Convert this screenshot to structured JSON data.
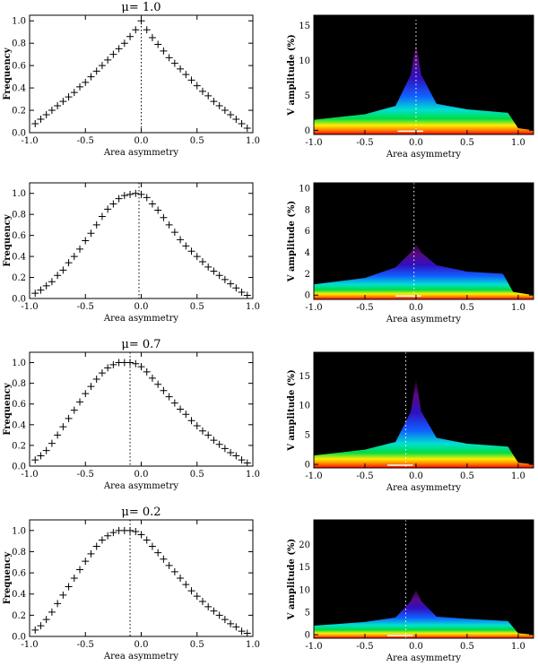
{
  "chart_data": [
    {
      "type": "scatter",
      "title": "μ= 1.0",
      "xlabel": "Area asymmetry",
      "ylabel": "Frequency",
      "xlim": [
        -1.0,
        1.0
      ],
      "ylim": [
        0.0,
        1.05
      ],
      "xticks": [
        "-1.0",
        "-0.5",
        "0.0",
        "0.5",
        "1.0"
      ],
      "yticks": [
        "0.0",
        "0.2",
        "0.4",
        "0.6",
        "0.8",
        "1.0"
      ],
      "peak_x": 0.0,
      "series": [
        {
          "x": [
            -0.95,
            -0.9,
            -0.85,
            -0.8,
            -0.75,
            -0.7,
            -0.65,
            -0.6,
            -0.55,
            -0.5,
            -0.45,
            -0.4,
            -0.35,
            -0.3,
            -0.25,
            -0.2,
            -0.15,
            -0.1,
            -0.05,
            0.0,
            0.05,
            0.1,
            0.15,
            0.2,
            0.25,
            0.3,
            0.35,
            0.4,
            0.45,
            0.5,
            0.55,
            0.6,
            0.65,
            0.7,
            0.75,
            0.8,
            0.85,
            0.9,
            0.95
          ],
          "y": [
            0.08,
            0.12,
            0.16,
            0.2,
            0.24,
            0.28,
            0.32,
            0.36,
            0.41,
            0.45,
            0.5,
            0.55,
            0.6,
            0.65,
            0.7,
            0.75,
            0.8,
            0.86,
            0.92,
            1.0,
            0.92,
            0.85,
            0.79,
            0.73,
            0.67,
            0.62,
            0.57,
            0.52,
            0.47,
            0.42,
            0.37,
            0.33,
            0.28,
            0.24,
            0.2,
            0.16,
            0.12,
            0.08,
            0.04
          ]
        }
      ]
    },
    {
      "type": "heatmap",
      "title": "",
      "xlabel": "Area asymmetry",
      "ylabel": "V amplitude (%)",
      "xlim": [
        -1.0,
        1.15
      ],
      "ylim": [
        -0.6,
        16.5
      ],
      "xticks": [
        "-1.0",
        "-0.5",
        "0.0",
        "0.5",
        "1.0"
      ],
      "yticks": [
        "0",
        "5",
        "10",
        "15"
      ],
      "peak_x": 0.0,
      "mode_envelope": {
        "x": [
          -1.0,
          -0.5,
          -0.2,
          -0.05,
          0.0,
          0.05,
          0.2,
          0.5,
          0.9,
          1.0,
          1.15
        ],
        "y": [
          1.5,
          2.3,
          3.5,
          8.0,
          12.5,
          8.0,
          3.8,
          3.0,
          2.5,
          0.3,
          0.0
        ]
      }
    },
    {
      "type": "scatter",
      "title": "",
      "xlabel": "Area asymmetry",
      "ylabel": "Frequency",
      "xlim": [
        -1.0,
        1.0
      ],
      "ylim": [
        0.0,
        1.1
      ],
      "xticks": [
        "-1.0",
        "-0.5",
        "0.0",
        "0.5",
        "1.0"
      ],
      "yticks": [
        "0.0",
        "0.2",
        "0.4",
        "0.6",
        "0.8",
        "1.0"
      ],
      "peak_x": -0.02,
      "series": [
        {
          "x": [
            -0.95,
            -0.9,
            -0.85,
            -0.8,
            -0.75,
            -0.7,
            -0.65,
            -0.6,
            -0.55,
            -0.5,
            -0.45,
            -0.4,
            -0.35,
            -0.3,
            -0.25,
            -0.2,
            -0.15,
            -0.1,
            -0.05,
            0.0,
            0.05,
            0.1,
            0.15,
            0.2,
            0.25,
            0.3,
            0.35,
            0.4,
            0.45,
            0.5,
            0.55,
            0.6,
            0.65,
            0.7,
            0.75,
            0.8,
            0.85,
            0.9,
            0.95
          ],
          "y": [
            0.05,
            0.08,
            0.12,
            0.16,
            0.22,
            0.27,
            0.34,
            0.4,
            0.47,
            0.55,
            0.62,
            0.7,
            0.78,
            0.85,
            0.9,
            0.95,
            0.98,
            0.99,
            1.0,
            0.99,
            0.96,
            0.9,
            0.84,
            0.77,
            0.7,
            0.63,
            0.56,
            0.5,
            0.45,
            0.4,
            0.35,
            0.3,
            0.26,
            0.22,
            0.18,
            0.14,
            0.1,
            0.06,
            0.03
          ]
        }
      ]
    },
    {
      "type": "heatmap",
      "title": "",
      "xlabel": "Area asymmetry",
      "ylabel": "V amplitude (%)",
      "xlim": [
        -1.0,
        1.15
      ],
      "ylim": [
        -0.4,
        10.5
      ],
      "xticks": [
        "-1.0",
        "-0.5",
        "0.0",
        "0.5",
        "1.0"
      ],
      "yticks": [
        "0",
        "2",
        "4",
        "6",
        "8",
        "10"
      ],
      "peak_x": -0.02,
      "mode_envelope": {
        "x": [
          -1.0,
          -0.5,
          -0.2,
          -0.05,
          0.0,
          0.05,
          0.2,
          0.5,
          0.85,
          0.95,
          1.15
        ],
        "y": [
          1.0,
          1.6,
          2.6,
          4.0,
          4.8,
          4.0,
          2.8,
          2.2,
          2.0,
          0.3,
          0.0
        ]
      }
    },
    {
      "type": "scatter",
      "title": "μ= 0.7",
      "xlabel": "Area asymmetry",
      "ylabel": "Frequency",
      "xlim": [
        -1.0,
        1.0
      ],
      "ylim": [
        0.0,
        1.1
      ],
      "xticks": [
        "-1.0",
        "-0.5",
        "0.0",
        "0.5",
        "1.0"
      ],
      "yticks": [
        "0.0",
        "0.2",
        "0.4",
        "0.6",
        "0.8",
        "1.0"
      ],
      "peak_x": -0.1,
      "series": [
        {
          "x": [
            -0.95,
            -0.9,
            -0.85,
            -0.8,
            -0.75,
            -0.7,
            -0.65,
            -0.6,
            -0.55,
            -0.5,
            -0.45,
            -0.4,
            -0.35,
            -0.3,
            -0.25,
            -0.2,
            -0.15,
            -0.1,
            -0.05,
            0.0,
            0.05,
            0.1,
            0.15,
            0.2,
            0.25,
            0.3,
            0.35,
            0.4,
            0.45,
            0.5,
            0.55,
            0.6,
            0.65,
            0.7,
            0.75,
            0.8,
            0.85,
            0.9,
            0.95
          ],
          "y": [
            0.06,
            0.1,
            0.15,
            0.22,
            0.3,
            0.38,
            0.46,
            0.54,
            0.62,
            0.7,
            0.77,
            0.84,
            0.9,
            0.95,
            0.98,
            1.0,
            1.0,
            1.0,
            0.99,
            0.96,
            0.91,
            0.85,
            0.79,
            0.73,
            0.67,
            0.61,
            0.55,
            0.5,
            0.44,
            0.39,
            0.34,
            0.3,
            0.25,
            0.21,
            0.17,
            0.13,
            0.1,
            0.06,
            0.03
          ]
        }
      ]
    },
    {
      "type": "heatmap",
      "title": "",
      "xlabel": "Area asymmetry",
      "ylabel": "V amplitude (%)",
      "xlim": [
        -1.0,
        1.15
      ],
      "ylim": [
        -0.6,
        19.0
      ],
      "xticks": [
        "-1.0",
        "-0.5",
        "0.0",
        "0.5",
        "1.0"
      ],
      "yticks": [
        "0",
        "5",
        "10",
        "15"
      ],
      "peak_x": -0.1,
      "mode_envelope": {
        "x": [
          -1.0,
          -0.5,
          -0.2,
          -0.05,
          0.0,
          0.05,
          0.2,
          0.5,
          0.9,
          1.0,
          1.15
        ],
        "y": [
          1.5,
          2.5,
          3.8,
          9.0,
          14.5,
          9.0,
          4.5,
          3.5,
          3.0,
          0.3,
          0.0
        ]
      }
    },
    {
      "type": "scatter",
      "title": "μ= 0.2",
      "xlabel": "Area asymmetry",
      "ylabel": "Frequency",
      "xlim": [
        -1.0,
        1.0
      ],
      "ylim": [
        0.0,
        1.1
      ],
      "xticks": [
        "-1.0",
        "-0.5",
        "0.0",
        "0.5",
        "1.0"
      ],
      "yticks": [
        "0.0",
        "0.2",
        "0.4",
        "0.6",
        "0.8",
        "1.0"
      ],
      "peak_x": -0.1,
      "series": [
        {
          "x": [
            -0.95,
            -0.9,
            -0.85,
            -0.8,
            -0.75,
            -0.7,
            -0.65,
            -0.6,
            -0.55,
            -0.5,
            -0.45,
            -0.4,
            -0.35,
            -0.3,
            -0.25,
            -0.2,
            -0.15,
            -0.1,
            -0.05,
            0.0,
            0.05,
            0.1,
            0.15,
            0.2,
            0.25,
            0.3,
            0.35,
            0.4,
            0.45,
            0.5,
            0.55,
            0.6,
            0.65,
            0.7,
            0.75,
            0.8,
            0.85,
            0.9,
            0.95
          ],
          "y": [
            0.06,
            0.1,
            0.16,
            0.23,
            0.31,
            0.39,
            0.47,
            0.55,
            0.63,
            0.71,
            0.78,
            0.85,
            0.91,
            0.95,
            0.98,
            1.0,
            1.0,
            1.0,
            0.99,
            0.96,
            0.91,
            0.85,
            0.79,
            0.73,
            0.67,
            0.61,
            0.55,
            0.49,
            0.43,
            0.38,
            0.33,
            0.28,
            0.24,
            0.2,
            0.16,
            0.12,
            0.09,
            0.05,
            0.03
          ]
        }
      ]
    },
    {
      "type": "heatmap",
      "title": "",
      "xlabel": "Area asymmetry",
      "ylabel": "V amplitude (%)",
      "xlim": [
        -1.0,
        1.15
      ],
      "ylim": [
        -0.8,
        25.5
      ],
      "xticks": [
        "-1.0",
        "-0.5",
        "0.0",
        "0.5",
        "1.0"
      ],
      "yticks": [
        "0",
        "5",
        "10",
        "15",
        "20"
      ],
      "peak_x": -0.1,
      "mode_envelope": {
        "x": [
          -1.0,
          -0.5,
          -0.2,
          -0.05,
          0.0,
          0.05,
          0.2,
          0.5,
          0.9,
          1.0,
          1.15
        ],
        "y": [
          2.0,
          2.8,
          3.8,
          7.5,
          10.0,
          7.5,
          4.0,
          3.5,
          3.0,
          0.3,
          0.0
        ]
      }
    }
  ]
}
